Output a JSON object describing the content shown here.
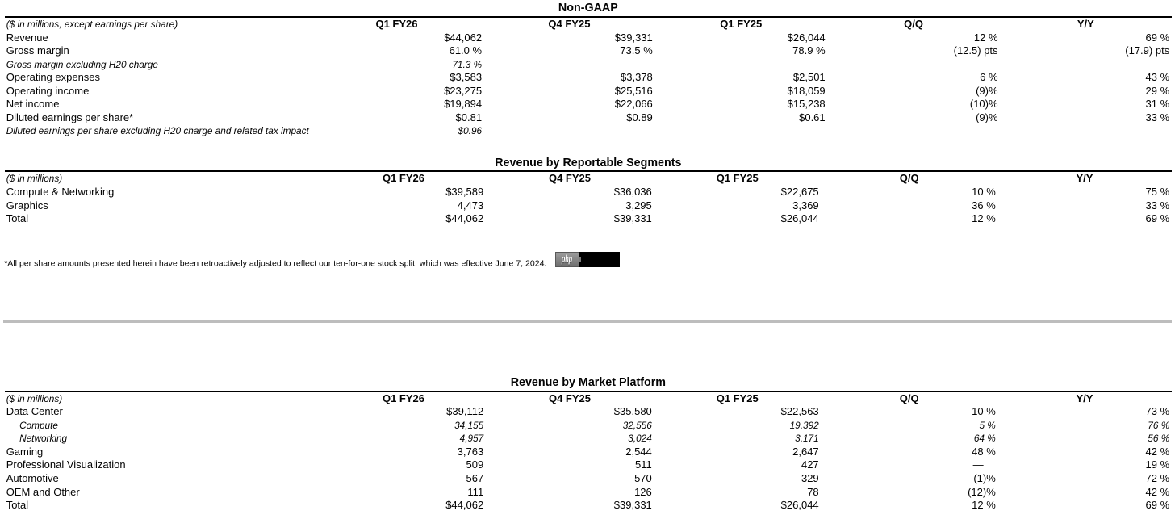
{
  "page": {
    "background": "#ffffff",
    "text_color": "#000000",
    "rule_color": "#000000",
    "divider_color": "#bdbdbd"
  },
  "tables": [
    {
      "title": "Non-GAAP",
      "unit_note": "($ in millions, except earnings per share)",
      "columns": [
        "Q1 FY26",
        "Q4 FY25",
        "Q1 FY25",
        "Q/Q",
        "Y/Y"
      ],
      "rows": [
        {
          "label": "Revenue",
          "style": "normal",
          "values": [
            "$44,062",
            "$39,331",
            "$26,044",
            "12 %",
            "69 %"
          ]
        },
        {
          "label": "Gross margin",
          "style": "normal",
          "values": [
            "61.0 %",
            "73.5 %",
            "78.9 %",
            "(12.5) pts",
            "(17.9) pts"
          ]
        },
        {
          "label": "Gross margin excluding H20 charge",
          "style": "italic",
          "values": [
            "71.3 %",
            "",
            "",
            "",
            ""
          ]
        },
        {
          "label": "Operating expenses",
          "style": "normal",
          "values": [
            "$3,583",
            "$3,378",
            "$2,501",
            "6 %",
            "43 %"
          ]
        },
        {
          "label": "Operating income",
          "style": "normal",
          "values": [
            "$23,275",
            "$25,516",
            "$18,059",
            "(9)%",
            "29 %"
          ]
        },
        {
          "label": "Net income",
          "style": "normal",
          "values": [
            "$19,894",
            "$22,066",
            "$15,238",
            "(10)%",
            "31 %"
          ]
        },
        {
          "label": "Diluted earnings per share*",
          "style": "normal",
          "values": [
            "$0.81",
            "$0.89",
            "$0.61",
            "(9)%",
            "33 %"
          ]
        },
        {
          "label": "Diluted earnings per share excluding H20 charge and related tax impact",
          "style": "italic",
          "values": [
            "$0.96",
            "",
            "",
            "",
            ""
          ]
        }
      ]
    },
    {
      "title": "Revenue by Reportable Segments",
      "unit_note": "($ in millions)",
      "columns": [
        "Q1 FY26",
        "Q4 FY25",
        "Q1 FY25",
        "Q/Q",
        "Y/Y"
      ],
      "rows": [
        {
          "label": "Compute & Networking",
          "style": "normal",
          "values": [
            "$39,589",
            "$36,036",
            "$22,675",
            "10 %",
            "75 %"
          ]
        },
        {
          "label": "Graphics",
          "style": "normal",
          "values": [
            "4,473",
            "3,295",
            "3,369",
            "36 %",
            "33 %"
          ]
        },
        {
          "label": "Total",
          "style": "normal",
          "values": [
            "$44,062",
            "$39,331",
            "$26,044",
            "12 %",
            "69 %"
          ]
        }
      ]
    },
    {
      "title": "Revenue by Market Platform",
      "unit_note": "($ in millions)",
      "columns": [
        "Q1 FY26",
        "Q4 FY25",
        "Q1 FY25",
        "Q/Q",
        "Y/Y"
      ],
      "rows": [
        {
          "label": "Data Center",
          "style": "normal",
          "values": [
            "$39,112",
            "$35,580",
            "$22,563",
            "10 %",
            "73 %"
          ]
        },
        {
          "label": "Compute",
          "style": "italic-indent",
          "values": [
            "34,155",
            "32,556",
            "19,392",
            "5 %",
            "76 %"
          ]
        },
        {
          "label": "Networking",
          "style": "italic-indent",
          "values": [
            "4,957",
            "3,024",
            "3,171",
            "64 %",
            "56 %"
          ]
        },
        {
          "label": "Gaming",
          "style": "normal",
          "values": [
            "3,763",
            "2,544",
            "2,647",
            "48 %",
            "42 %"
          ]
        },
        {
          "label": "Professional Visualization",
          "style": "normal",
          "values": [
            "509",
            "511",
            "427",
            "—",
            "19 %"
          ]
        },
        {
          "label": "Automotive",
          "style": "normal",
          "values": [
            "567",
            "570",
            "329",
            "(1)%",
            "72 %"
          ]
        },
        {
          "label": "OEM and Other",
          "style": "normal",
          "values": [
            "111",
            "126",
            "78",
            "(12)%",
            "42 %"
          ]
        },
        {
          "label": "Total",
          "style": "normal",
          "values": [
            "$44,062",
            "$39,331",
            "$26,044",
            "12 %",
            "69 %"
          ]
        }
      ]
    }
  ],
  "footnote": {
    "text": "*All per share amounts presented herein have been retroactively adjusted to reflect our ten-for-one stock split, which was effective June 7, 2024.",
    "badge_label": "php"
  }
}
